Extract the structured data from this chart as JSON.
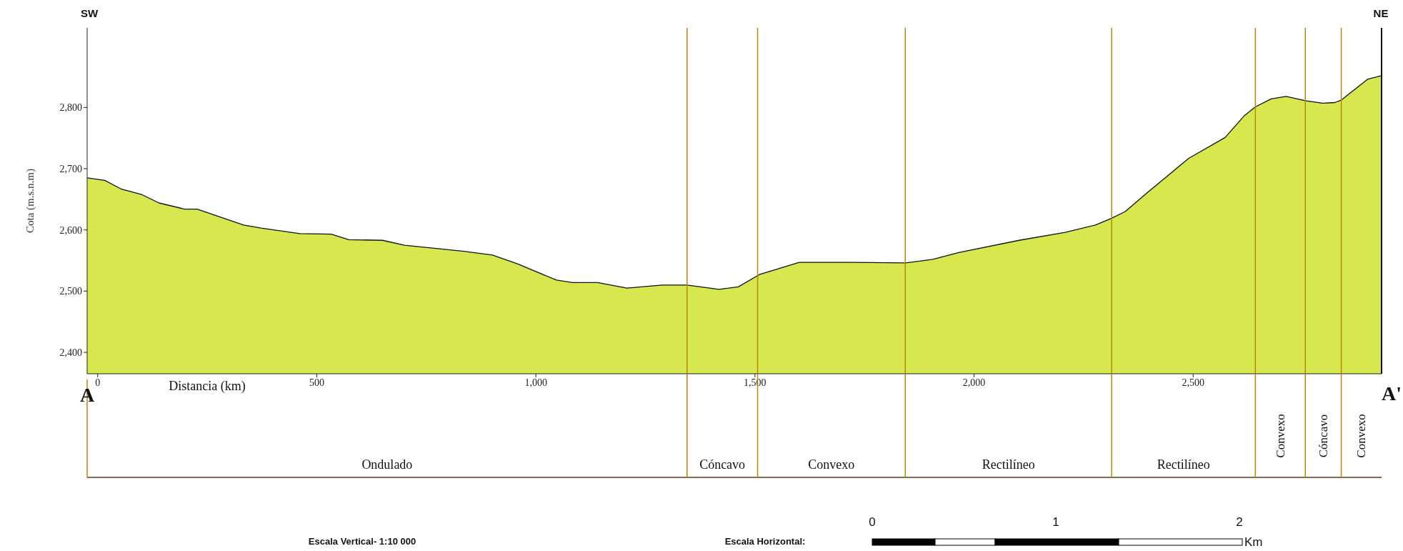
{
  "chart_data": {
    "type": "area",
    "xlabel": "Distancia  (km)",
    "ylabel": "Cota (m.s.n.m)",
    "x": [
      -24,
      16,
      53,
      100,
      140,
      198,
      227,
      333,
      373,
      461,
      533,
      573,
      650,
      700,
      836,
      901,
      960,
      1047,
      1084,
      1141,
      1208,
      1288,
      1345,
      1418,
      1462,
      1510,
      1601,
      1725,
      1843,
      1906,
      1965,
      2103,
      2208,
      2277,
      2314,
      2345,
      2394,
      2490,
      2573,
      2616,
      2642,
      2678,
      2712,
      2756,
      2795,
      2823,
      2838,
      2898,
      2930
    ],
    "series": [
      {
        "color": "#d6e84e",
        "values": [
          2685,
          2681,
          2667,
          2658,
          2644,
          2634,
          2634,
          2608,
          2603,
          2594,
          2593,
          2584,
          2583,
          2575,
          2565,
          2559,
          2544,
          2518,
          2514,
          2514,
          2505,
          2510,
          2510,
          2503,
          2507,
          2527,
          2547,
          2547,
          2546,
          2552,
          2563,
          2583,
          2596,
          2608,
          2619,
          2630,
          2660,
          2717,
          2751,
          2786,
          2801,
          2814,
          2818,
          2811,
          2807,
          2808,
          2812,
          2846,
          2852
        ]
      }
    ],
    "xlim": [
      -24,
      2930
    ],
    "xticks": [
      0,
      500,
      {
        "value": 1000,
        "label": "1,000"
      },
      {
        "value": 1500,
        "label": "1,500"
      },
      {
        "value": 2000,
        "label": "2,000"
      },
      {
        "value": 2500,
        "label": "2,500"
      }
    ],
    "ylim": [
      2365,
      2930
    ],
    "yticks": [
      {
        "value": 2400,
        "label": "2,400"
      },
      {
        "value": 2500,
        "label": "2,500"
      },
      {
        "value": 2600,
        "label": "2,600"
      },
      {
        "value": 2700,
        "label": "2,700"
      },
      {
        "value": 2800,
        "label": "2,800"
      }
    ],
    "ref_lines": [
      {
        "axis": "x",
        "value": 1345,
        "color": "#b8860b"
      },
      {
        "axis": "x",
        "value": 1506,
        "color": "#b8860b"
      },
      {
        "axis": "x",
        "value": 1843,
        "color": "#b8860b"
      },
      {
        "axis": "x",
        "value": 2314,
        "color": "#b8860b"
      },
      {
        "axis": "x",
        "value": 2642,
        "color": "#b8860b"
      },
      {
        "axis": "x",
        "value": 2756,
        "color": "#b8860b"
      },
      {
        "axis": "x",
        "value": 2838,
        "color": "#b8860b"
      }
    ],
    "annotations": [
      "SW",
      "NE",
      "A",
      "A'",
      "Escala Vertical- 1:10 000",
      "Escala Horizontal:",
      "0",
      "1",
      "2",
      "Km",
      "Ondulado",
      "Cóncavo",
      "Convexo",
      "Rectilíneo",
      "Rectilíneo",
      "Convexo",
      "Cóncavo",
      "Convexo"
    ]
  }
}
